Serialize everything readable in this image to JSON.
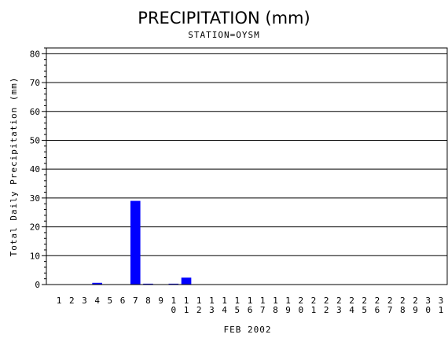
{
  "chart_data": {
    "type": "bar",
    "title": "PRECIPITATION (mm)",
    "subtitle": "STATION=OYSM",
    "xlabel": "FEB 2002",
    "ylabel": "Total Daily Precipitation (mm)",
    "ylim": [
      0,
      82
    ],
    "yticks": [
      0,
      10,
      20,
      30,
      40,
      50,
      60,
      70,
      80
    ],
    "grid": "horizontal",
    "color": "#0000ff",
    "categories": [
      "1",
      "2",
      "3",
      "4",
      "5",
      "6",
      "7",
      "8",
      "9",
      "10",
      "11",
      "12",
      "13",
      "14",
      "15",
      "16",
      "17",
      "18",
      "19",
      "20",
      "21",
      "22",
      "23",
      "24",
      "25",
      "26",
      "27",
      "28",
      "29",
      "30",
      "31"
    ],
    "values": [
      0,
      0,
      0,
      0.6,
      0,
      0,
      29,
      0.3,
      0,
      0.3,
      2.4,
      0,
      0,
      0,
      0,
      0,
      0,
      0,
      0,
      0,
      0,
      0,
      0,
      0,
      0,
      0,
      0,
      0,
      0,
      0,
      0
    ]
  }
}
